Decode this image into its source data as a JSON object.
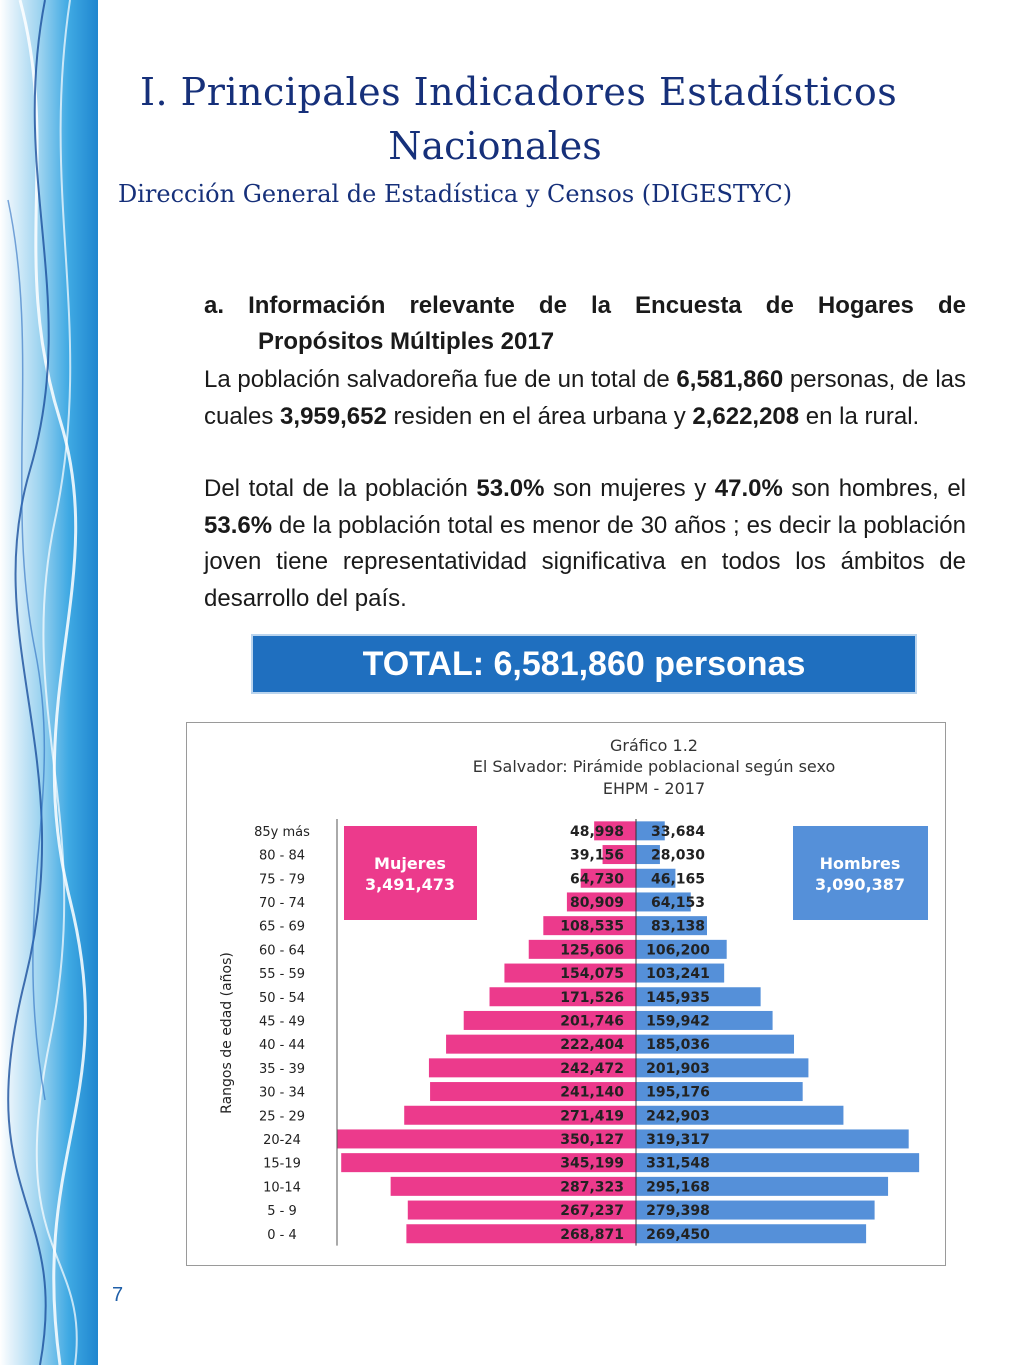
{
  "header": {
    "title_line1": "I.  Principales Indicadores Estadísticos",
    "title_line2": "Nacionales",
    "subtitle": "Dirección General de Estadística y Censos (DIGESTYC)"
  },
  "section": {
    "marker": "a.",
    "heading_words": [
      "Información",
      "relevante",
      "de",
      "la",
      "Encuesta",
      "de",
      "Hogares",
      "de"
    ],
    "heading_line2": "Propósitos Múltiples 2017",
    "p1_a": "La población salvadoreña fue de un total de ",
    "p1_b": "6,581,860",
    "p1_c": " personas, de las cuales ",
    "p1_d": "3,959,652",
    "p1_e": " residen en el área urbana y ",
    "p1_f": "2,622,208",
    "p1_g": " en la rural.",
    "p2_a": "Del total de la población ",
    "p2_b": "53.0%",
    "p2_c": " son mujeres y ",
    "p2_d": "47.0%",
    "p2_e": " son hombres, el ",
    "p2_f": "53.6%",
    "p2_g": " de la población total  es menor de 30 años ; es decir la población joven tiene representatividad significativa en todos los ámbitos de desarrollo del país."
  },
  "total_banner": "TOTAL: 6,581,860 personas",
  "page_number": "7",
  "colors": {
    "mujeres": "#ec3a8c",
    "hombres": "#5590d9",
    "title": "#16307a",
    "banner": "#1f6fbf"
  },
  "chart_data": {
    "type": "bar",
    "orientation": "horizontal-pyramid",
    "title_lines": [
      "Gráfico 1.2",
      "El Salvador: Pirámide poblacional según sexo",
      "EHPM - 2017"
    ],
    "ylabel": "Rangos de edad (años)",
    "categories": [
      "85y más",
      "80 - 84",
      "75 - 79",
      "70 - 74",
      "65 - 69",
      "60 - 64",
      "55 - 59",
      "50 - 54",
      "45 - 49",
      "40 - 44",
      "35 - 39",
      "30 - 34",
      "25 - 29",
      "20-24",
      "15-19",
      "10-14",
      "5 - 9",
      "0 - 4"
    ],
    "series": [
      {
        "name": "Mujeres",
        "total": "3,491,473",
        "values": [
          48998,
          39156,
          64730,
          80909,
          108535,
          125606,
          154075,
          171526,
          201746,
          222404,
          242472,
          241140,
          271419,
          350127,
          345199,
          287323,
          267237,
          268871
        ],
        "labels": [
          "48,998",
          "39,156",
          "64,730",
          "80,909",
          "108,535",
          "125,606",
          "154,075",
          "171,526",
          "201,746",
          "222,404",
          "242,472",
          "241,140",
          "271,419",
          "350,127",
          "345,199",
          "287,323",
          "267,237",
          "268,871"
        ]
      },
      {
        "name": "Hombres",
        "total": "3,090,387",
        "values": [
          33684,
          28030,
          46165,
          64153,
          83138,
          106200,
          103241,
          145935,
          159942,
          185036,
          201903,
          195176,
          242903,
          319317,
          331548,
          295168,
          279398,
          269450
        ],
        "labels": [
          "33,684",
          "28,030",
          "46,165",
          "64,153",
          "83,138",
          "106,200",
          "103,241",
          "145,935",
          "159,942",
          "185,036",
          "201,903",
          "195,176",
          "242,903",
          "319,317",
          "331,548",
          "295,168",
          "279,398",
          "269,450"
        ]
      }
    ]
  }
}
